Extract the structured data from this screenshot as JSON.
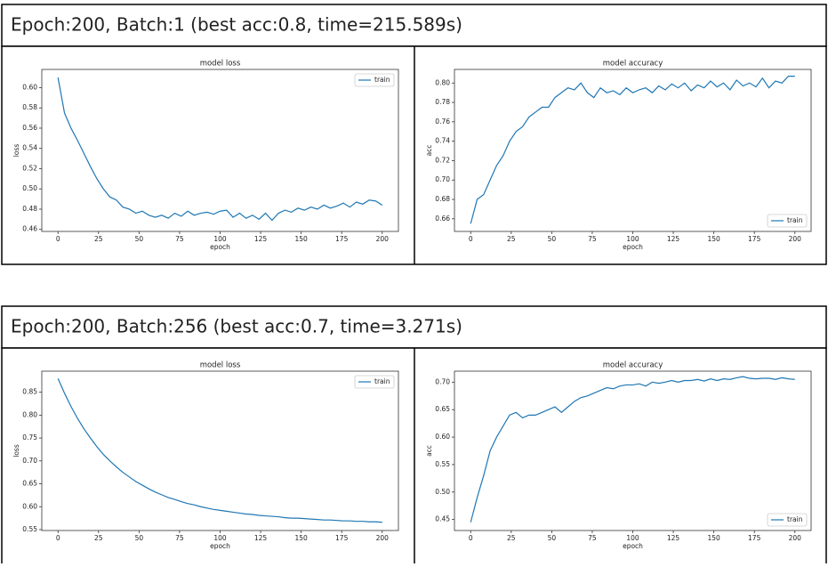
{
  "headers": [
    "Epoch:200, Batch:1 (best acc:0.8, time=215.589s)",
    "Epoch:200, Batch:256 (best acc:0.7, time=3.271s)"
  ],
  "chart_data": [
    {
      "type": "line",
      "title": "model loss",
      "x_label": "epoch",
      "y_label": "loss",
      "legend": "upper right",
      "x": [
        0,
        4,
        8,
        12,
        16,
        20,
        24,
        28,
        32,
        36,
        40,
        44,
        48,
        52,
        56,
        60,
        64,
        68,
        72,
        76,
        80,
        84,
        88,
        92,
        96,
        100,
        104,
        108,
        112,
        116,
        120,
        124,
        128,
        132,
        136,
        140,
        144,
        148,
        152,
        156,
        160,
        164,
        168,
        172,
        176,
        180,
        184,
        188,
        192,
        196,
        200
      ],
      "series": [
        {
          "name": "train",
          "color": "#1f77b4",
          "values": [
            0.61,
            0.575,
            0.56,
            0.548,
            0.535,
            0.522,
            0.51,
            0.5,
            0.492,
            0.489,
            0.482,
            0.48,
            0.476,
            0.478,
            0.474,
            0.472,
            0.474,
            0.471,
            0.476,
            0.473,
            0.478,
            0.474,
            0.476,
            0.477,
            0.475,
            0.478,
            0.479,
            0.472,
            0.476,
            0.471,
            0.474,
            0.47,
            0.476,
            0.469,
            0.476,
            0.479,
            0.477,
            0.481,
            0.479,
            0.482,
            0.48,
            0.484,
            0.481,
            0.483,
            0.486,
            0.482,
            0.487,
            0.485,
            0.489,
            0.488,
            0.484
          ]
        }
      ],
      "xlim": [
        -10,
        210
      ],
      "xticks": [
        0,
        25,
        50,
        75,
        100,
        125,
        150,
        175,
        200
      ],
      "ylim": [
        0.458,
        0.618
      ],
      "yticks": [
        {
          "value": 0.46,
          "label": "0.46"
        },
        {
          "value": 0.48,
          "label": "0.48"
        },
        {
          "value": 0.5,
          "label": "0.50"
        },
        {
          "value": 0.52,
          "label": "0.52"
        },
        {
          "value": 0.54,
          "label": "0.54"
        },
        {
          "value": 0.56,
          "label": "0.56"
        },
        {
          "value": 0.58,
          "label": "0.58"
        },
        {
          "value": 0.6,
          "label": "0.60"
        }
      ]
    },
    {
      "type": "line",
      "title": "model accuracy",
      "x_label": "epoch",
      "y_label": "acc",
      "legend": "lower right",
      "x": [
        0,
        4,
        8,
        12,
        16,
        20,
        24,
        28,
        32,
        36,
        40,
        44,
        48,
        52,
        56,
        60,
        64,
        68,
        72,
        76,
        80,
        84,
        88,
        92,
        96,
        100,
        104,
        108,
        112,
        116,
        120,
        124,
        128,
        132,
        136,
        140,
        144,
        148,
        152,
        156,
        160,
        164,
        168,
        172,
        176,
        180,
        184,
        188,
        192,
        196,
        200
      ],
      "series": [
        {
          "name": "train",
          "color": "#1f77b4",
          "values": [
            0.655,
            0.68,
            0.685,
            0.7,
            0.715,
            0.725,
            0.74,
            0.75,
            0.755,
            0.765,
            0.77,
            0.775,
            0.775,
            0.785,
            0.79,
            0.795,
            0.793,
            0.8,
            0.79,
            0.785,
            0.795,
            0.79,
            0.792,
            0.788,
            0.795,
            0.79,
            0.793,
            0.795,
            0.79,
            0.797,
            0.793,
            0.799,
            0.795,
            0.8,
            0.792,
            0.798,
            0.795,
            0.802,
            0.796,
            0.8,
            0.793,
            0.803,
            0.797,
            0.8,
            0.796,
            0.805,
            0.795,
            0.802,
            0.8,
            0.807,
            0.807
          ]
        }
      ],
      "xlim": [
        -10,
        210
      ],
      "xticks": [
        0,
        25,
        50,
        75,
        100,
        125,
        150,
        175,
        200
      ],
      "ylim": [
        0.647,
        0.814
      ],
      "yticks": [
        {
          "value": 0.66,
          "label": "0.66"
        },
        {
          "value": 0.68,
          "label": "0.68"
        },
        {
          "value": 0.7,
          "label": "0.70"
        },
        {
          "value": 0.72,
          "label": "0.72"
        },
        {
          "value": 0.74,
          "label": "0.74"
        },
        {
          "value": 0.76,
          "label": "0.76"
        },
        {
          "value": 0.78,
          "label": "0.78"
        },
        {
          "value": 0.8,
          "label": "0.80"
        }
      ]
    },
    {
      "type": "line",
      "title": "model loss",
      "x_label": "epoch",
      "y_label": "loss",
      "legend": "upper right",
      "x": [
        0,
        4,
        8,
        12,
        16,
        20,
        24,
        28,
        32,
        36,
        40,
        44,
        48,
        52,
        56,
        60,
        64,
        68,
        72,
        76,
        80,
        84,
        88,
        92,
        96,
        100,
        104,
        108,
        112,
        116,
        120,
        124,
        128,
        132,
        136,
        140,
        144,
        148,
        152,
        156,
        160,
        164,
        168,
        172,
        176,
        180,
        184,
        188,
        192,
        196,
        200
      ],
      "series": [
        {
          "name": "train",
          "color": "#1f77b4",
          "values": [
            0.88,
            0.848,
            0.819,
            0.793,
            0.77,
            0.75,
            0.731,
            0.714,
            0.7,
            0.687,
            0.675,
            0.665,
            0.655,
            0.647,
            0.639,
            0.632,
            0.626,
            0.62,
            0.616,
            0.611,
            0.607,
            0.604,
            0.6,
            0.597,
            0.594,
            0.592,
            0.59,
            0.588,
            0.586,
            0.584,
            0.583,
            0.581,
            0.58,
            0.579,
            0.578,
            0.576,
            0.575,
            0.575,
            0.574,
            0.573,
            0.572,
            0.571,
            0.571,
            0.57,
            0.569,
            0.569,
            0.568,
            0.568,
            0.567,
            0.567,
            0.566
          ]
        }
      ],
      "xlim": [
        -10,
        210
      ],
      "xticks": [
        0,
        25,
        50,
        75,
        100,
        125,
        150,
        175,
        200
      ],
      "ylim": [
        0.548,
        0.896
      ],
      "yticks": [
        {
          "value": 0.55,
          "label": "0.55"
        },
        {
          "value": 0.6,
          "label": "0.60"
        },
        {
          "value": 0.65,
          "label": "0.65"
        },
        {
          "value": 0.7,
          "label": "0.70"
        },
        {
          "value": 0.75,
          "label": "0.75"
        },
        {
          "value": 0.8,
          "label": "0.80"
        },
        {
          "value": 0.85,
          "label": "0.85"
        }
      ]
    },
    {
      "type": "line",
      "title": "model accuracy",
      "x_label": "epoch",
      "y_label": "acc",
      "legend": "lower right",
      "x": [
        0,
        4,
        8,
        12,
        16,
        20,
        24,
        28,
        32,
        36,
        40,
        44,
        48,
        52,
        56,
        60,
        64,
        68,
        72,
        76,
        80,
        84,
        88,
        92,
        96,
        100,
        104,
        108,
        112,
        116,
        120,
        124,
        128,
        132,
        136,
        140,
        144,
        148,
        152,
        156,
        160,
        164,
        168,
        172,
        176,
        180,
        184,
        188,
        192,
        196,
        200
      ],
      "series": [
        {
          "name": "train",
          "color": "#1f77b4",
          "values": [
            0.445,
            0.49,
            0.53,
            0.575,
            0.6,
            0.62,
            0.64,
            0.645,
            0.635,
            0.64,
            0.64,
            0.645,
            0.65,
            0.655,
            0.645,
            0.655,
            0.665,
            0.672,
            0.675,
            0.68,
            0.685,
            0.69,
            0.688,
            0.693,
            0.695,
            0.695,
            0.697,
            0.693,
            0.7,
            0.698,
            0.7,
            0.703,
            0.7,
            0.703,
            0.703,
            0.705,
            0.702,
            0.706,
            0.703,
            0.706,
            0.705,
            0.708,
            0.71,
            0.707,
            0.706,
            0.707,
            0.707,
            0.705,
            0.708,
            0.706,
            0.705
          ]
        }
      ],
      "xlim": [
        -10,
        210
      ],
      "xticks": [
        0,
        25,
        50,
        75,
        100,
        125,
        150,
        175,
        200
      ],
      "ylim": [
        0.43,
        0.72
      ],
      "yticks": [
        {
          "value": 0.45,
          "label": "0.45"
        },
        {
          "value": 0.5,
          "label": "0.50"
        },
        {
          "value": 0.55,
          "label": "0.55"
        },
        {
          "value": 0.6,
          "label": "0.60"
        },
        {
          "value": 0.65,
          "label": "0.65"
        },
        {
          "value": 0.7,
          "label": "0.70"
        }
      ]
    }
  ]
}
